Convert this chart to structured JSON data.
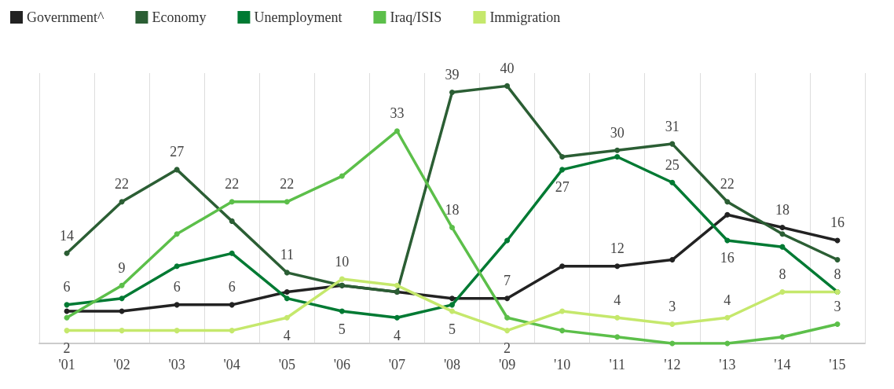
{
  "chart_data": {
    "type": "line",
    "categories": [
      "'01",
      "'02",
      "'03",
      "'04",
      "'05",
      "'06",
      "'07",
      "'08",
      "'09",
      "'10",
      "'11",
      "'12",
      "'13",
      "'14",
      "'15"
    ],
    "ylim": [
      0,
      42
    ],
    "tick_labels": "x",
    "grid": "x",
    "legend": "top left",
    "marker": "circle",
    "line_style": "solid",
    "series": [
      {
        "name": "Government^",
        "color": "#222222",
        "values": [
          5,
          5,
          6,
          6,
          8,
          9,
          8,
          7,
          7,
          12,
          12,
          13,
          20,
          18,
          16
        ],
        "value_labels": [
          null,
          null,
          "6",
          "6",
          null,
          null,
          null,
          null,
          "7",
          null,
          "12",
          null,
          null,
          "18",
          "16"
        ]
      },
      {
        "name": "Economy",
        "color": "#2b5e34",
        "values": [
          14,
          22,
          27,
          19,
          11,
          9,
          8,
          39,
          40,
          29,
          30,
          31,
          22,
          17,
          13
        ],
        "value_labels": [
          "14",
          "22",
          "27",
          null,
          "11",
          null,
          null,
          "39",
          "40",
          null,
          "30",
          "31",
          "22",
          null,
          null
        ]
      },
      {
        "name": "Unemployment",
        "color": "#007a33",
        "values": [
          6,
          7,
          12,
          14,
          7,
          5,
          4,
          6,
          16,
          27,
          29,
          25,
          16,
          15,
          8
        ],
        "value_labels": [
          "6",
          null,
          null,
          null,
          null,
          "5",
          "4",
          null,
          null,
          "27",
          null,
          "25",
          "16",
          null,
          null
        ]
      },
      {
        "name": "Iraq/ISIS",
        "color": "#5cbf4a",
        "values": [
          4,
          9,
          17,
          22,
          22,
          26,
          33,
          18,
          4,
          2,
          1,
          0,
          0,
          1,
          3
        ],
        "value_labels": [
          null,
          "9",
          null,
          "22",
          "22",
          null,
          "33",
          "18",
          null,
          null,
          null,
          null,
          null,
          null,
          "3"
        ]
      },
      {
        "name": "Immigration",
        "color": "#c5e86c",
        "values": [
          2,
          2,
          2,
          2,
          4,
          10,
          9,
          5,
          2,
          5,
          4,
          3,
          4,
          8,
          8
        ],
        "value_labels": [
          "2",
          null,
          null,
          null,
          "4",
          "10",
          null,
          "5",
          "2",
          null,
          "4",
          "3",
          "4",
          "8",
          "8"
        ]
      }
    ]
  }
}
